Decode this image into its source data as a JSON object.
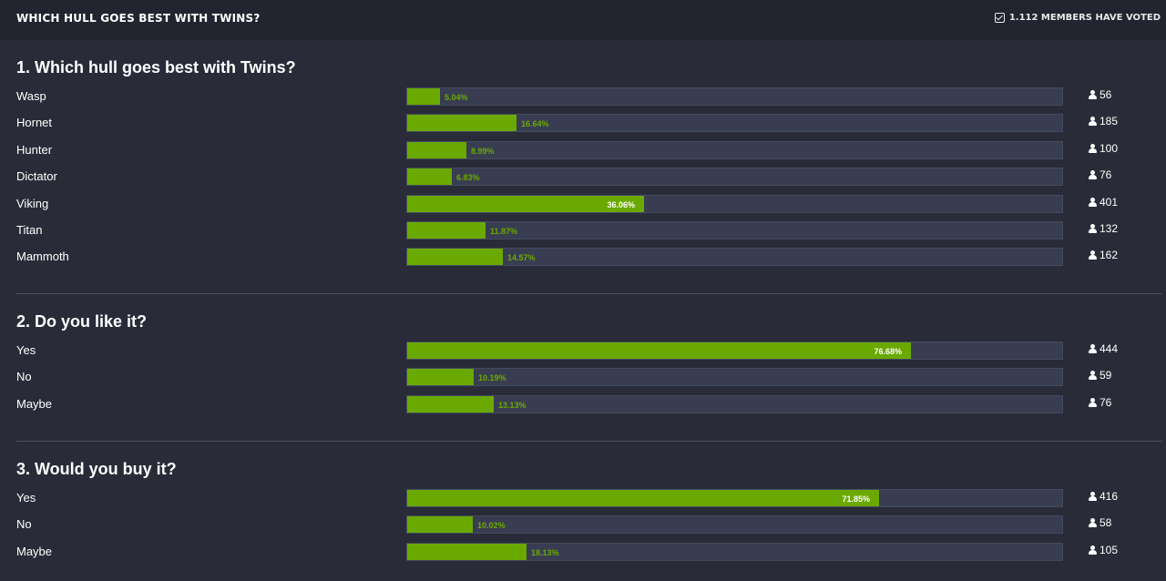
{
  "header": {
    "poll_title": "Which hull goes best with Twins?",
    "voted_text": "1.112 members have voted"
  },
  "colors": {
    "bar": "#6aaa00",
    "track": "#393d51",
    "background": "#292c38"
  },
  "questions": [
    {
      "title": "1. Which hull goes best with Twins?",
      "choices": [
        {
          "label": "Wasp",
          "percent": "5.04%",
          "votes": "56",
          "fraction": 0.0504
        },
        {
          "label": "Hornet",
          "percent": "16.64%",
          "votes": "185",
          "fraction": 0.1664
        },
        {
          "label": "Hunter",
          "percent": "8.99%",
          "votes": "100",
          "fraction": 0.0899
        },
        {
          "label": "Dictator",
          "percent": "6.83%",
          "votes": "76",
          "fraction": 0.0683
        },
        {
          "label": "Viking",
          "percent": "36.06%",
          "votes": "401",
          "fraction": 0.3606
        },
        {
          "label": "Titan",
          "percent": "11.87%",
          "votes": "132",
          "fraction": 0.1187
        },
        {
          "label": "Mammoth",
          "percent": "14.57%",
          "votes": "162",
          "fraction": 0.1457
        }
      ]
    },
    {
      "title": "2. Do you like it?",
      "choices": [
        {
          "label": "Yes",
          "percent": "76.68%",
          "votes": "444",
          "fraction": 0.7668
        },
        {
          "label": "No",
          "percent": "10.19%",
          "votes": "59",
          "fraction": 0.1019
        },
        {
          "label": "Maybe",
          "percent": "13.13%",
          "votes": "76",
          "fraction": 0.1313
        }
      ]
    },
    {
      "title": "3. Would you buy it?",
      "choices": [
        {
          "label": "Yes",
          "percent": "71.85%",
          "votes": "416",
          "fraction": 0.7185
        },
        {
          "label": "No",
          "percent": "10.02%",
          "votes": "58",
          "fraction": 0.1002
        },
        {
          "label": "Maybe",
          "percent": "18.13%",
          "votes": "105",
          "fraction": 0.1813
        }
      ]
    }
  ]
}
